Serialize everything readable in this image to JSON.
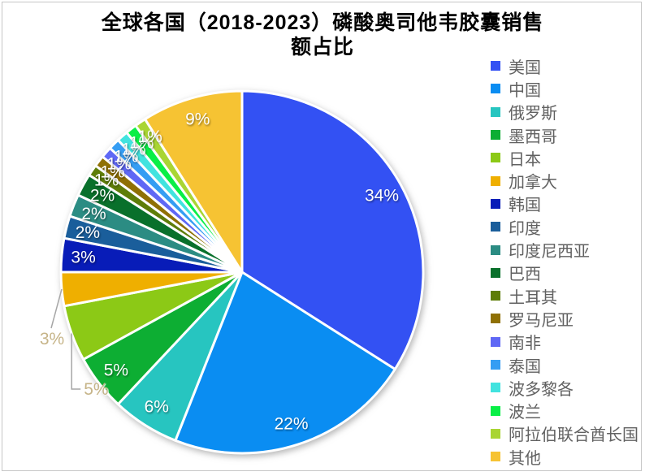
{
  "title": {
    "line1": "全球各国（2018-2023）磷酸奥司他韦胶囊销售",
    "line2": "额占比"
  },
  "chart_data": {
    "type": "pie",
    "title": "全球各国（2018-2023）磷酸奥司他韦胶囊销售额占比",
    "start_angle_deg": 0,
    "direction": "clockwise",
    "legend_position": "right",
    "label_format": "percent",
    "inside_label_color": "#FFFFFF",
    "outside_label_color": "#C6B488",
    "leader_line_color": "#A6A6A6",
    "slices": [
      {
        "name": "美国",
        "value": 34,
        "color": "#3351F3",
        "label_placement": "inside"
      },
      {
        "name": "中国",
        "value": 22,
        "color": "#0A8DF2",
        "label_placement": "inside"
      },
      {
        "name": "俄罗斯",
        "value": 6,
        "color": "#27C5C0",
        "label_placement": "inside"
      },
      {
        "name": "墨西哥",
        "value": 5,
        "color": "#0DAE33",
        "label_placement": "inside"
      },
      {
        "name": "日本",
        "value": 5,
        "color": "#8CC916",
        "label_placement": "outside-elbow"
      },
      {
        "name": "加拿大",
        "value": 3,
        "color": "#EFAF00",
        "label_placement": "outside-diagonal"
      },
      {
        "name": "韩国",
        "value": 3,
        "color": "#081CB8",
        "label_placement": "inside"
      },
      {
        "name": "印度",
        "value": 2,
        "color": "#1A5E9B",
        "label_placement": "inside"
      },
      {
        "name": "印度尼西亚",
        "value": 2,
        "color": "#2B8C83",
        "label_placement": "inside"
      },
      {
        "name": "巴西",
        "value": 2,
        "color": "#09702B",
        "label_placement": "inside"
      },
      {
        "name": "土耳其",
        "value": 1,
        "color": "#5E7D08",
        "label_placement": "inside"
      },
      {
        "name": "罗马尼亚",
        "value": 1,
        "color": "#8F7004",
        "label_placement": "inside"
      },
      {
        "name": "南非",
        "value": 1,
        "color": "#5F68F5",
        "label_placement": "inside"
      },
      {
        "name": "泰国",
        "value": 1,
        "color": "#359DF3",
        "label_placement": "inside"
      },
      {
        "name": "波多黎各",
        "value": 1,
        "color": "#41E3DF",
        "label_placement": "inside"
      },
      {
        "name": "波兰",
        "value": 1,
        "color": "#09EF46",
        "label_placement": "inside"
      },
      {
        "name": "阿拉伯联合酋长国",
        "value": 1,
        "color": "#A9D533",
        "label_placement": "inside"
      },
      {
        "name": "其他",
        "value": 9,
        "color": "#F6C333",
        "label_placement": "inside"
      }
    ]
  }
}
